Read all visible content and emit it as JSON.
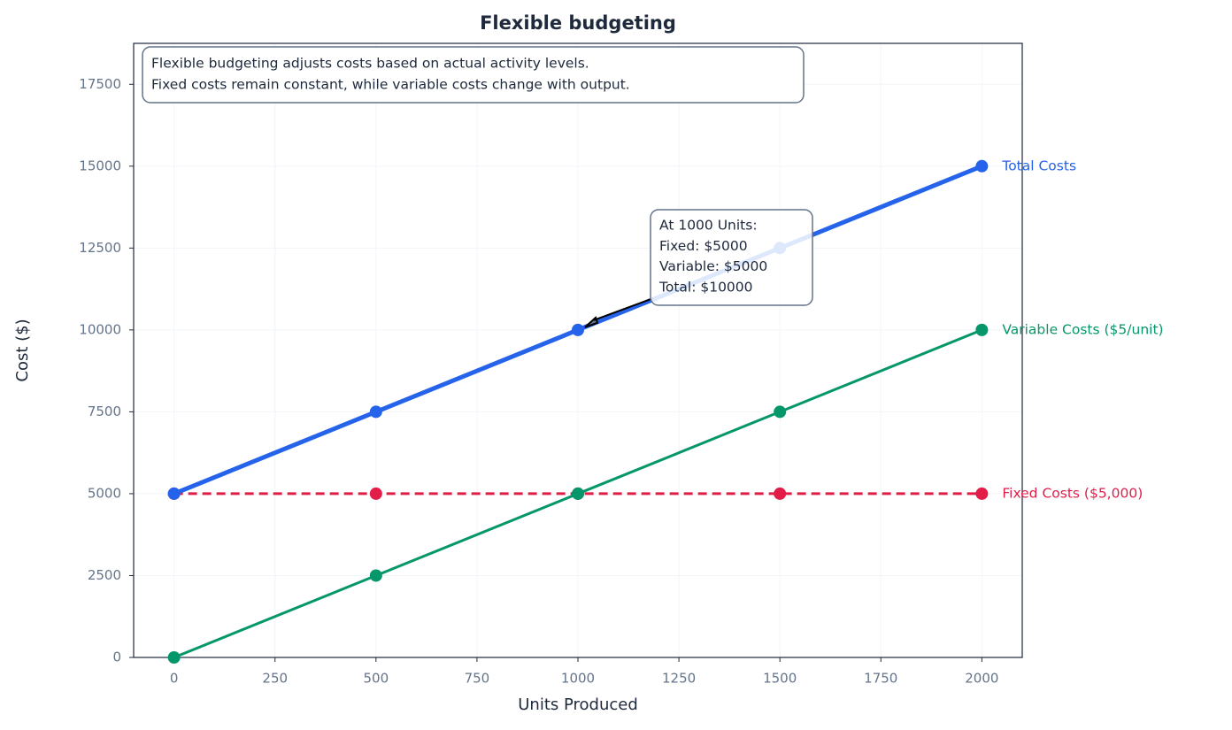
{
  "chart_data": {
    "type": "line",
    "title": "Flexible budgeting",
    "x_label": "Units Produced",
    "y_label": "Cost ($)",
    "x": [
      0,
      500,
      1000,
      1500,
      2000
    ],
    "series": [
      {
        "name": "Total Costs",
        "color": "#2563eb",
        "values": [
          5000,
          7500,
          10000,
          12500,
          15000
        ]
      },
      {
        "name": "Variable Costs ($5/unit)",
        "color": "#059669",
        "values": [
          0,
          2500,
          5000,
          7500,
          10000
        ]
      },
      {
        "name": "Fixed Costs ($5,000)",
        "color": "#e11d48",
        "values": [
          5000,
          5000,
          5000,
          5000,
          5000
        ]
      }
    ],
    "xlim": [
      -100,
      2100
    ],
    "ylim": [
      0,
      18750
    ],
    "xticks": [
      0,
      250,
      500,
      750,
      1000,
      1250,
      1500,
      1750,
      2000
    ],
    "yticks": [
      0,
      2500,
      5000,
      7500,
      10000,
      12500,
      15000,
      17500
    ],
    "grid": true,
    "info_box": [
      "Flexible budgeting adjusts costs based on actual activity levels.",
      "Fixed costs remain constant, while variable costs change with output."
    ],
    "annotation": [
      "At 1000 Units:",
      "Fixed: $5000",
      "Variable: $5000",
      "Total: $10000"
    ]
  }
}
